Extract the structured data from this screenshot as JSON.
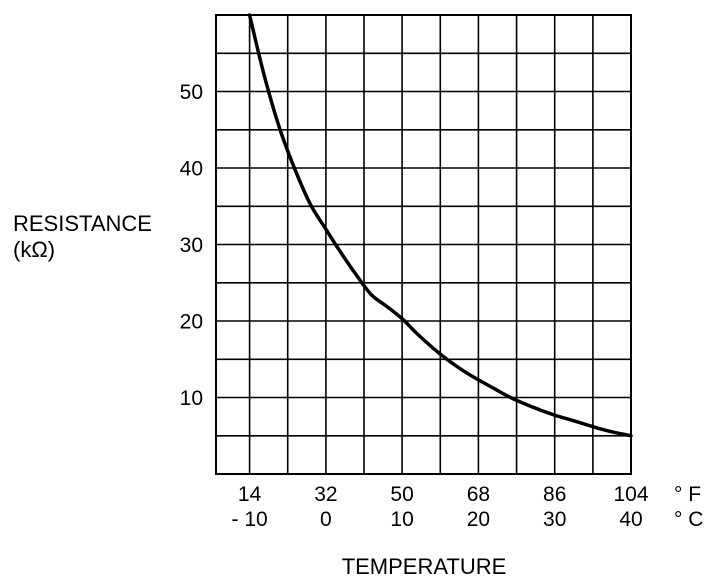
{
  "chart_data": {
    "type": "line",
    "title": "",
    "ylabel": "RESISTANCE",
    "ylabel_unit": "(kΩ)",
    "xlabel": "TEMPERATURE",
    "x_unit_f": "° F",
    "x_unit_c": "° C",
    "x_ticks_f": [
      "14",
      "32",
      "50",
      "68",
      "86",
      "104"
    ],
    "x_ticks_c": [
      "- 10",
      "0",
      "10",
      "20",
      "30",
      "40"
    ],
    "y_ticks": [
      "10",
      "20",
      "30",
      "40",
      "50"
    ],
    "xlim_c": [
      -14.4,
      40
    ],
    "ylim": [
      0,
      60
    ],
    "grid": true,
    "line_color": "#000000",
    "series": [
      {
        "x_celsius": [
          -10,
          -8,
          -6,
          -4,
          -2,
          0,
          2,
          4,
          6,
          8,
          10,
          12,
          14,
          16,
          18,
          20,
          22,
          24,
          26,
          28,
          30,
          32,
          34,
          36,
          38,
          40
        ],
        "values": [
          60.0,
          51.8,
          45.0,
          39.7,
          35.2,
          32.0,
          28.9,
          26.0,
          23.4,
          21.9,
          20.3,
          18.3,
          16.5,
          14.9,
          13.5,
          12.3,
          11.2,
          10.1,
          9.2,
          8.4,
          7.7,
          7.1,
          6.5,
          5.9,
          5.4,
          5.0
        ]
      }
    ]
  }
}
